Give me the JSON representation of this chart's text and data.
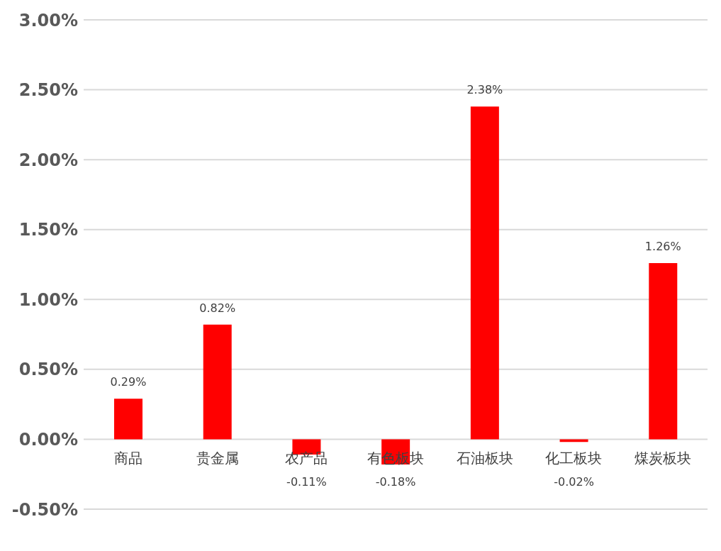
{
  "chart_data": {
    "type": "bar",
    "categories": [
      "商品",
      "贵金属",
      "农产品",
      "有色板块",
      "石油板块",
      "化工板块",
      "煤炭板块"
    ],
    "values": [
      0.29,
      0.82,
      -0.11,
      -0.18,
      2.38,
      -0.02,
      1.26
    ],
    "value_labels": [
      "0.29%",
      "0.82%",
      "-0.11%",
      "-0.18%",
      "2.38%",
      "-0.02%",
      "1.26%"
    ],
    "color": "#ff0000",
    "ylim": [
      -0.5,
      3
    ],
    "yticks": [
      {
        "value": -0.5,
        "label": "-0.50%"
      },
      {
        "value": 0,
        "label": "0.00%"
      },
      {
        "value": 0.5,
        "label": "0.50%"
      },
      {
        "value": 1,
        "label": "1.00%"
      },
      {
        "value": 1.5,
        "label": "1.50%"
      },
      {
        "value": 2,
        "label": "2.00%"
      },
      {
        "value": 2.5,
        "label": "2.50%"
      },
      {
        "value": 3,
        "label": "3.00%"
      }
    ],
    "grid": "y",
    "legend": false
  }
}
